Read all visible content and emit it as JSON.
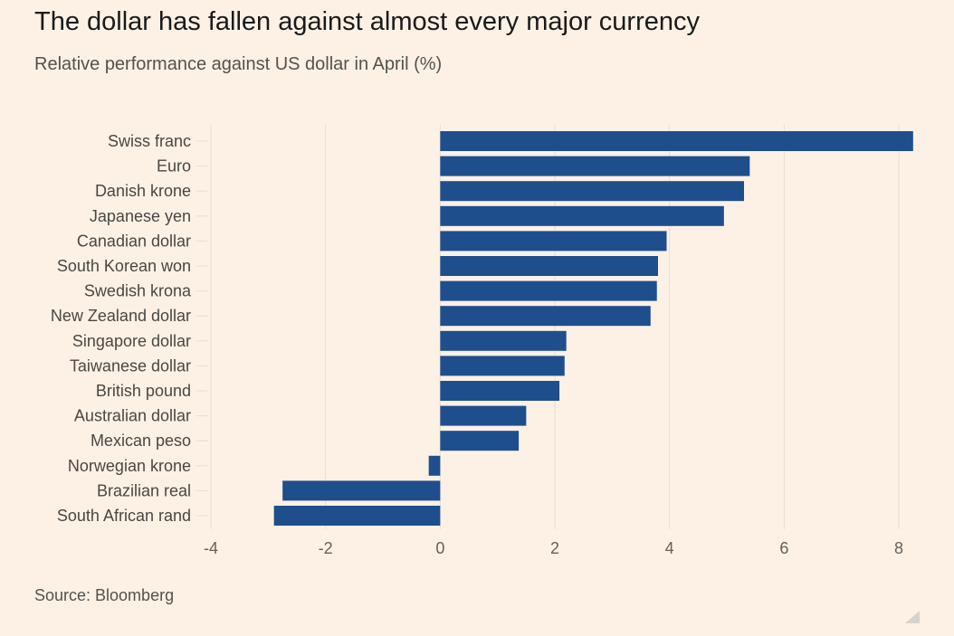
{
  "title": "The dollar has fallen against almost every major currency",
  "subtitle": "Relative performance against US dollar in April (%)",
  "source": "Source: Bloomberg",
  "colors": {
    "bar": "#1f4e8c",
    "background": "#fdf1e6",
    "grid": "#e7ddd3"
  },
  "chart_data": {
    "type": "bar",
    "orientation": "horizontal",
    "categories": [
      "Swiss franc",
      "Euro",
      "Danish krone",
      "Japanese yen",
      "Canadian dollar",
      "South Korean won",
      "Swedish krona",
      "New Zealand dollar",
      "Singapore dollar",
      "Taiwanese dollar",
      "British pound",
      "Australian dollar",
      "Mexican peso",
      "Norwegian krone",
      "Brazilian real",
      "South African rand"
    ],
    "values": [
      8.25,
      5.4,
      5.3,
      4.95,
      3.95,
      3.8,
      3.78,
      3.67,
      2.2,
      2.17,
      2.08,
      1.5,
      1.37,
      -0.2,
      -2.75,
      -2.9
    ],
    "xlim": [
      -4,
      8
    ],
    "xticks": [
      "-4",
      "-2",
      "0",
      "2",
      "4",
      "6",
      "8"
    ],
    "grid": true
  }
}
